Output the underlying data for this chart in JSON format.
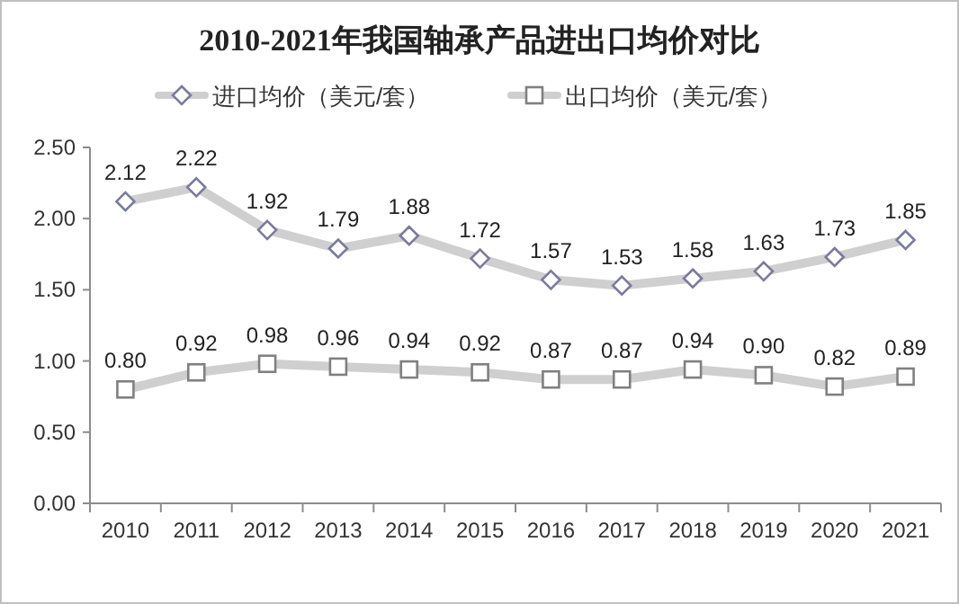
{
  "chart_data": {
    "type": "line",
    "title": "2010-2021年我国轴承产品进出口均价对比",
    "categories": [
      "2010",
      "2011",
      "2012",
      "2013",
      "2014",
      "2015",
      "2016",
      "2017",
      "2018",
      "2019",
      "2020",
      "2021"
    ],
    "series": [
      {
        "name": "进口均价（美元/套）",
        "color": "#cfcfcf",
        "marker": "diamond",
        "values": [
          2.12,
          2.22,
          1.92,
          1.79,
          1.88,
          1.72,
          1.57,
          1.53,
          1.58,
          1.63,
          1.73,
          1.85
        ],
        "value_labels": [
          "2.12",
          "2.22",
          "1.92",
          "1.79",
          "1.88",
          "1.72",
          "1.57",
          "1.53",
          "1.58",
          "1.63",
          "1.73",
          "1.85"
        ]
      },
      {
        "name": "出口均价（美元/套）",
        "color": "#cfcfcf",
        "marker": "square",
        "values": [
          0.8,
          0.92,
          0.98,
          0.96,
          0.94,
          0.92,
          0.87,
          0.87,
          0.94,
          0.9,
          0.82,
          0.89
        ],
        "value_labels": [
          "0.80",
          "0.92",
          "0.98",
          "0.96",
          "0.94",
          "0.92",
          "0.87",
          "0.87",
          "0.94",
          "0.90",
          "0.82",
          "0.89"
        ]
      }
    ],
    "ylim": [
      0,
      2.5
    ],
    "yticks": [
      {
        "value": 0,
        "label": "0.00"
      },
      {
        "value": 0.5,
        "label": "0.50"
      },
      {
        "value": 1,
        "label": "1.00"
      },
      {
        "value": 1.5,
        "label": "1.50"
      },
      {
        "value": 2,
        "label": "2.00"
      },
      {
        "value": 2.5,
        "label": "2.50"
      }
    ],
    "grid": false,
    "legend": "top",
    "line_style": "solid"
  }
}
